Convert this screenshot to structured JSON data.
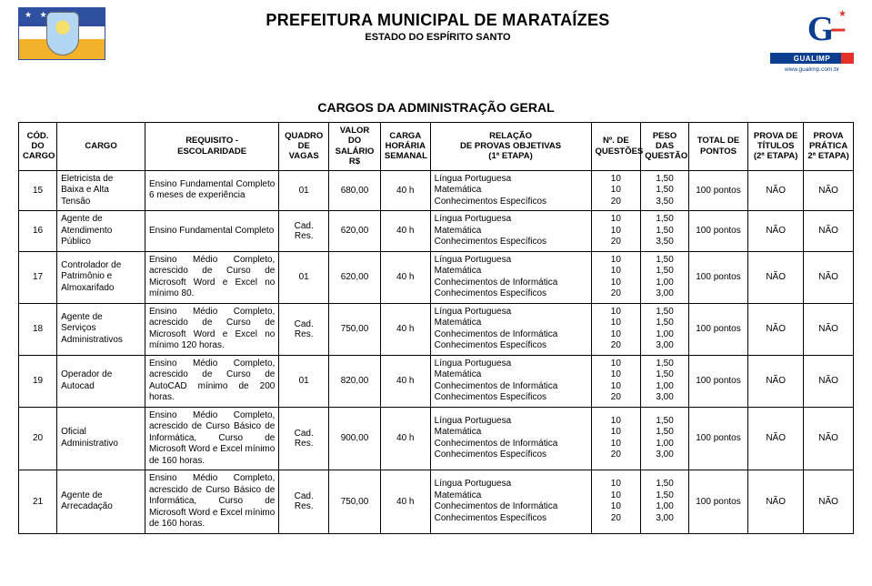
{
  "background_color": "#ffffff",
  "text_color": "#000000",
  "border_color": "#000000",
  "font_family": "Arial",
  "header": {
    "title": "PREFEITURA MUNICIPAL DE MARATAÍZES",
    "subtitle": "ESTADO DO ESPÍRITO SANTO",
    "right_logo_text": "GUALIMP",
    "right_logo_url": "www.gualimp.com.br"
  },
  "section_title": "CARGOS DA ADMINISTRAÇÃO GERAL",
  "columns": [
    "CÓD.\nDO\nCARGO",
    "CARGO",
    "REQUISITO -\nESCOLARIDADE",
    "QUADRO\nDE\nVAGAS",
    "VALOR DO\nSALÁRIO\nR$",
    "CARGA\nHORÁRIA\nSEMANAL",
    "RELAÇÃO\nDE PROVAS OBJETIVAS\n(1ª ETAPA)",
    "Nº. DE\nQUESTÕES",
    "PESO DAS\nQUESTÃO",
    "TOTAL DE\nPONTOS",
    "PROVA DE\nTÍTULOS\n(2ª ETAPA)",
    "PROVA\nPRÁTICA\n2ª ETAPA)"
  ],
  "rows": [
    {
      "cod": "15",
      "cargo": "Eletricista de\nBaixa e Alta\nTensão",
      "req": "Ensino Fundamental Completo\n6 meses de experiência",
      "vagas": "01",
      "salario": "680,00",
      "carga": "40 h",
      "rel": [
        "Língua Portuguesa",
        "Matemática",
        "Conhecimentos Específicos"
      ],
      "nq": [
        "10",
        "10",
        "20"
      ],
      "peso": [
        "1,50",
        "1,50",
        "3,50"
      ],
      "total": "100 pontos",
      "tit": "NÃO",
      "prat": "NÃO"
    },
    {
      "cod": "16",
      "cargo": "Agente de\nAtendimento\nPúblico",
      "req": "Ensino Fundamental Completo",
      "vagas": "Cad.\nRes.",
      "salario": "620,00",
      "carga": "40 h",
      "rel": [
        "Língua Portuguesa",
        "Matemática",
        "Conhecimentos Específicos"
      ],
      "nq": [
        "10",
        "10",
        "20"
      ],
      "peso": [
        "1,50",
        "1,50",
        "3,50"
      ],
      "total": "100 pontos",
      "tit": "NÃO",
      "prat": "NÃO"
    },
    {
      "cod": "17",
      "cargo": "Controlador de\nPatrimônio e\nAlmoxarifado",
      "req": "Ensino Médio Completo, acrescido de Curso de Microsoft Word e Excel no mínimo 80.",
      "vagas": "01",
      "salario": "620,00",
      "carga": "40 h",
      "rel": [
        "Língua Portuguesa",
        "Matemática",
        "Conhecimentos de Informática",
        "Conhecimentos Específicos"
      ],
      "nq": [
        "10",
        "10",
        "10",
        "20"
      ],
      "peso": [
        "1,50",
        "1,50",
        "1,00",
        "3,00"
      ],
      "total": "100 pontos",
      "tit": "NÃO",
      "prat": "NÃO"
    },
    {
      "cod": "18",
      "cargo": "Agente de\nServiços\nAdministrativos",
      "req": "Ensino Médio Completo, acrescido de Curso de Microsoft Word e Excel no mínimo 120 horas.",
      "vagas": "Cad.\nRes.",
      "salario": "750,00",
      "carga": "40 h",
      "rel": [
        "Língua Portuguesa",
        "Matemática",
        "Conhecimentos de Informática",
        "Conhecimentos Específicos"
      ],
      "nq": [
        "10",
        "10",
        "10",
        "20"
      ],
      "peso": [
        "1,50",
        "1,50",
        "1,00",
        "3,00"
      ],
      "total": "100 pontos",
      "tit": "NÃO",
      "prat": "NÃO"
    },
    {
      "cod": "19",
      "cargo": "Operador de\nAutocad",
      "req": "Ensino Médio Completo, acrescido de Curso de AutoCAD mínimo de 200 horas.",
      "vagas": "01",
      "salario": "820,00",
      "carga": "40 h",
      "rel": [
        "Língua Portuguesa",
        "Matemática",
        "Conhecimentos de Informática",
        "Conhecimentos Específicos"
      ],
      "nq": [
        "10",
        "10",
        "10",
        "20"
      ],
      "peso": [
        "1,50",
        "1,50",
        "1,00",
        "3,00"
      ],
      "total": "100 pontos",
      "tit": "NÃO",
      "prat": "NÃO"
    },
    {
      "cod": "20",
      "cargo": "Oficial\nAdministrativo",
      "req": "Ensino Médio Completo, acrescido de Curso Básico de Informática, Curso de Microsoft Word e Excel mínimo de 160 horas.",
      "vagas": "Cad.\nRes.",
      "salario": "900,00",
      "carga": "40 h",
      "rel": [
        "Língua Portuguesa",
        "Matemática",
        "Conhecimentos de Informática",
        "Conhecimentos Específicos"
      ],
      "nq": [
        "10",
        "10",
        "10",
        "20"
      ],
      "peso": [
        "1,50",
        "1,50",
        "1,00",
        "3,00"
      ],
      "total": "100 pontos",
      "tit": "NÃO",
      "prat": "NÃO"
    },
    {
      "cod": "21",
      "cargo": "Agente de\nArrecadação",
      "req": "Ensino Médio Completo, acrescido de Curso Básico de Informática, Curso de Microsoft Word e Excel mínimo de 160 horas.",
      "vagas": "Cad.\nRes.",
      "salario": "750,00",
      "carga": "40 h",
      "rel": [
        "Língua Portuguesa",
        "Matemática",
        "Conhecimentos de Informática",
        "Conhecimentos Específicos"
      ],
      "nq": [
        "10",
        "10",
        "10",
        "20"
      ],
      "peso": [
        "1,50",
        "1,50",
        "1,00",
        "3,00"
      ],
      "total": "100 pontos",
      "tit": "NÃO",
      "prat": "NÃO"
    }
  ]
}
